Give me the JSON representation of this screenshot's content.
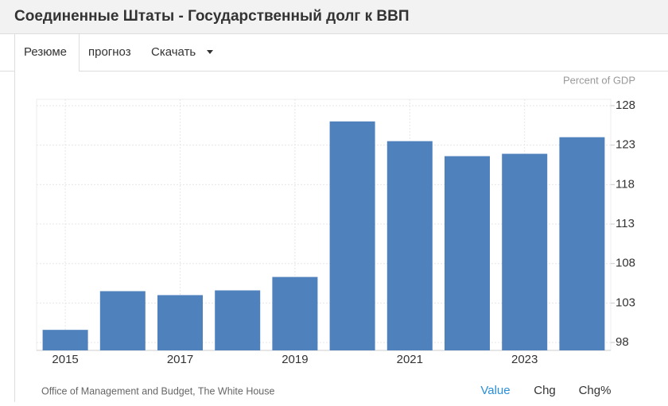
{
  "header": {
    "title": "Соединенные Штаты - Государственный долг к ВВП"
  },
  "tabs": [
    "Резюме",
    "прогноз",
    "Скачать"
  ],
  "chart_data": {
    "type": "bar",
    "unit_label": "Percent of GDP",
    "categories": [
      "2015",
      null,
      "2017",
      null,
      "2019",
      null,
      "2021",
      null,
      "2023",
      null
    ],
    "values": [
      99.6,
      104.5,
      104.0,
      104.6,
      106.3,
      126.0,
      123.5,
      121.6,
      121.9,
      124.0
    ],
    "color": "#4f81bd",
    "ylim": [
      97,
      128.8
    ],
    "yticks": [
      98,
      103,
      108,
      113,
      118,
      123,
      128
    ],
    "grid": true
  },
  "footer": {
    "source": "Office of Management and Budget, The White House",
    "buttons": [
      "Value",
      "Chg",
      "Chg%"
    ]
  }
}
